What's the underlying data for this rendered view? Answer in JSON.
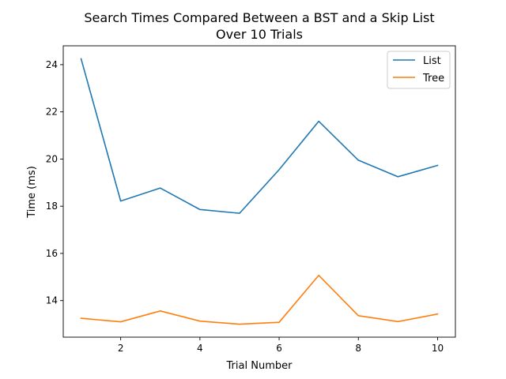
{
  "chart_data": {
    "type": "line",
    "title_lines": [
      "Search Times Compared Between a BST and a Skip List",
      "Over 10 Trials"
    ],
    "xlabel": "Trial Number",
    "ylabel": "Time (ms)",
    "x": [
      1,
      2,
      3,
      4,
      5,
      6,
      7,
      8,
      9,
      10
    ],
    "xticks": [
      2,
      4,
      6,
      8,
      10
    ],
    "yticks": [
      14,
      16,
      18,
      20,
      22,
      24
    ],
    "xlim": [
      0.55,
      10.45
    ],
    "ylim": [
      12.45,
      24.8
    ],
    "grid": false,
    "legend_position": "top-right",
    "series": [
      {
        "name": "List",
        "color": "#1f77b4",
        "values": [
          24.25,
          18.22,
          18.77,
          17.86,
          17.7,
          19.55,
          21.6,
          19.95,
          19.25,
          19.73
        ]
      },
      {
        "name": "Tree",
        "color": "#ff7f0e",
        "values": [
          13.25,
          13.1,
          13.56,
          13.13,
          13.0,
          13.08,
          15.07,
          13.36,
          13.11,
          13.43
        ]
      }
    ]
  }
}
